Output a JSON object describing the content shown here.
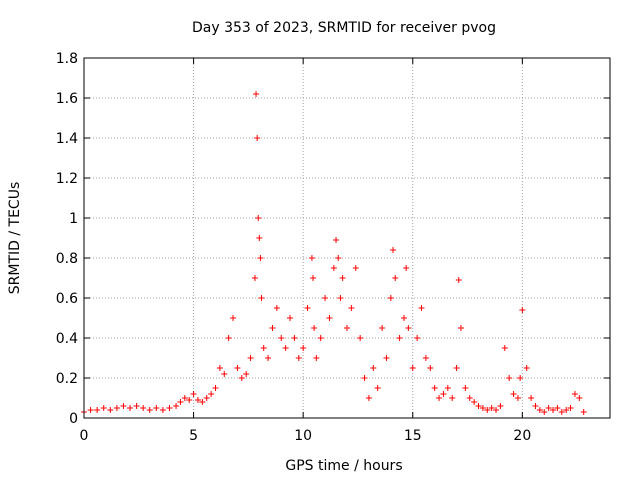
{
  "chart_data": {
    "type": "scatter",
    "title": "Day 353 of 2023, SRMTID for receiver pvog",
    "xlabel": "GPS time / hours",
    "ylabel": "SRMTID / TECUs",
    "xlim": [
      0,
      24
    ],
    "ylim": [
      0,
      1.8
    ],
    "xticks": [
      0,
      5,
      10,
      15,
      20
    ],
    "xtick_labels": [
      "0",
      "5",
      "10",
      "15",
      "20"
    ],
    "yticks": [
      0,
      0.2,
      0.4,
      0.6,
      0.8,
      1,
      1.2,
      1.4,
      1.6,
      1.8
    ],
    "ytick_labels": [
      "0",
      "0.2",
      "0.4",
      "0.6",
      "0.8",
      "1",
      "1.2",
      "1.4",
      "1.6",
      "1.8"
    ],
    "grid": true,
    "marker": "+",
    "series": [
      {
        "name": "SRMTID",
        "color": "#ff0000",
        "x": [
          0.0,
          0.3,
          0.6,
          0.9,
          1.2,
          1.5,
          1.8,
          2.1,
          2.4,
          2.7,
          3.0,
          3.3,
          3.6,
          3.9,
          4.2,
          4.4,
          4.6,
          4.8,
          5.0,
          5.2,
          5.4,
          5.6,
          5.8,
          6.0,
          6.2,
          6.4,
          6.6,
          6.8,
          7.0,
          7.2,
          7.4,
          7.6,
          7.8,
          7.85,
          7.9,
          7.95,
          8.0,
          8.05,
          8.1,
          8.2,
          8.4,
          8.6,
          8.8,
          9.0,
          9.2,
          9.4,
          9.6,
          9.8,
          10.0,
          10.2,
          10.4,
          10.45,
          10.5,
          10.6,
          10.8,
          11.0,
          11.2,
          11.4,
          11.5,
          11.6,
          11.7,
          11.8,
          12.0,
          12.2,
          12.4,
          12.6,
          12.8,
          13.0,
          13.2,
          13.4,
          13.6,
          13.8,
          14.0,
          14.1,
          14.2,
          14.4,
          14.6,
          14.7,
          14.8,
          15.0,
          15.2,
          15.4,
          15.6,
          15.8,
          16.0,
          16.2,
          16.4,
          16.6,
          16.8,
          17.0,
          17.1,
          17.2,
          17.4,
          17.6,
          17.8,
          18.0,
          18.2,
          18.4,
          18.6,
          18.8,
          19.0,
          19.2,
          19.4,
          19.6,
          19.8,
          19.9,
          20.0,
          20.2,
          20.4,
          20.6,
          20.8,
          21.0,
          21.2,
          21.4,
          21.6,
          21.8,
          22.0,
          22.2,
          22.4,
          22.6,
          22.8
        ],
        "y": [
          0.03,
          0.04,
          0.04,
          0.05,
          0.04,
          0.05,
          0.06,
          0.05,
          0.06,
          0.05,
          0.04,
          0.05,
          0.04,
          0.05,
          0.06,
          0.08,
          0.1,
          0.09,
          0.12,
          0.09,
          0.08,
          0.1,
          0.12,
          0.15,
          0.25,
          0.22,
          0.4,
          0.5,
          0.25,
          0.2,
          0.22,
          0.3,
          0.7,
          1.62,
          1.4,
          1.0,
          0.9,
          0.8,
          0.6,
          0.35,
          0.3,
          0.45,
          0.55,
          0.4,
          0.35,
          0.5,
          0.4,
          0.3,
          0.35,
          0.55,
          0.8,
          0.7,
          0.45,
          0.3,
          0.4,
          0.6,
          0.5,
          0.75,
          0.89,
          0.8,
          0.6,
          0.7,
          0.45,
          0.55,
          0.75,
          0.4,
          0.2,
          0.1,
          0.25,
          0.15,
          0.45,
          0.3,
          0.6,
          0.84,
          0.7,
          0.4,
          0.5,
          0.75,
          0.45,
          0.25,
          0.4,
          0.55,
          0.3,
          0.25,
          0.15,
          0.1,
          0.12,
          0.15,
          0.1,
          0.25,
          0.69,
          0.45,
          0.15,
          0.1,
          0.08,
          0.06,
          0.05,
          0.04,
          0.05,
          0.04,
          0.06,
          0.35,
          0.2,
          0.12,
          0.1,
          0.2,
          0.54,
          0.25,
          0.1,
          0.06,
          0.04,
          0.03,
          0.05,
          0.04,
          0.05,
          0.03,
          0.04,
          0.05,
          0.12,
          0.1,
          0.03
        ]
      }
    ]
  }
}
